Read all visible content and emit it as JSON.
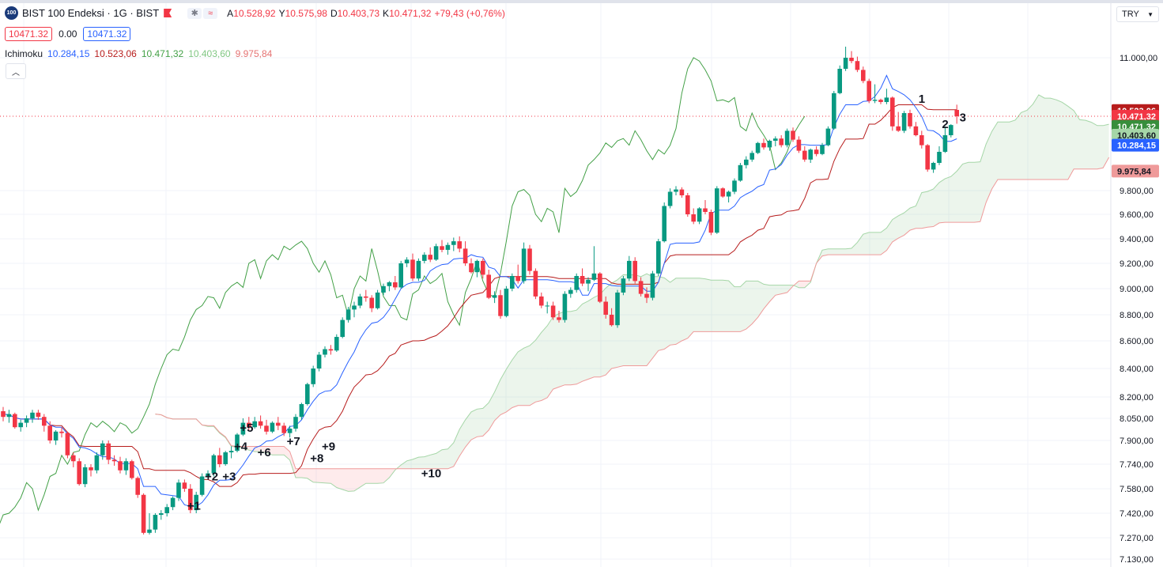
{
  "header": {
    "logo_text": "100",
    "symbol": "BIST 100 Endeksi · 1G · BIST",
    "ohlc": {
      "o_label": "A",
      "o_value": "10.528,92",
      "h_label": "Y",
      "h_value": "10.575,98",
      "l_label": "D",
      "l_value": "10.403,73",
      "c_label": "K",
      "c_value": "10.471,32",
      "change": "+79,43 (+0,76%)"
    },
    "bid": "10471.32",
    "spread": "0.00",
    "ask": "10471.32",
    "indicator_name": "Ichimoku",
    "indicator_values": [
      "10.284,15",
      "10.523,06",
      "10.471,32",
      "10.403,60",
      "9.975,84"
    ],
    "currency": "TRY",
    "collapse_icon": "chevron-up-icon"
  },
  "colors": {
    "up": "#089981",
    "down": "#f23645",
    "tenkan": "#2962ff",
    "kijun": "#b71c1c",
    "chikou": "#43a047",
    "spanA": "#a5d6a7",
    "spanB": "#ef9a9a",
    "cloud_up": "rgba(67,160,71,0.10)",
    "cloud_down": "rgba(242,54,69,0.10)"
  },
  "chart_data": {
    "type": "candlestick",
    "yticks": [
      "11.000,00",
      "9.800,00",
      "9.600,00",
      "9.400,00",
      "9.200,00",
      "9.000,00",
      "8.800,00",
      "8.600,00",
      "8.400,00",
      "8.200,00",
      "8.050,00",
      "7.900,00",
      "7.740,00",
      "7.580,00",
      "7.420,00",
      "7.270,00",
      "7.130,00"
    ],
    "price_tags": [
      {
        "text": "10.523,06",
        "y": 10523.06,
        "color": "#b71c1c"
      },
      {
        "text": "10.471,32",
        "y": 10471.32,
        "color": "#f23645"
      },
      {
        "text": "10.471,32",
        "y": 10380,
        "color": "#388e3c"
      },
      {
        "text": "10.403,60",
        "y": 10300,
        "color": "#a5d6a7"
      },
      {
        "text": "10.284,15",
        "y": 10210,
        "color": "#2962ff"
      },
      {
        "text": "9.975,84",
        "y": 9975.84,
        "color": "#ef9a9a"
      }
    ],
    "candles": [
      [
        8100,
        8130,
        8030,
        8060
      ],
      [
        8060,
        8110,
        8020,
        8080
      ],
      [
        8080,
        8090,
        7980,
        7990
      ],
      [
        7990,
        8040,
        7960,
        8020
      ],
      [
        8020,
        8070,
        7990,
        8050
      ],
      [
        8050,
        8110,
        8020,
        8090
      ],
      [
        8090,
        8110,
        8040,
        8060
      ],
      [
        8060,
        8080,
        7960,
        8000
      ],
      [
        8000,
        8030,
        7880,
        7900
      ],
      [
        7900,
        7970,
        7870,
        7960
      ],
      [
        7960,
        7990,
        7920,
        7950
      ],
      [
        7950,
        7960,
        7780,
        7800
      ],
      [
        7800,
        7820,
        7720,
        7760
      ],
      [
        7760,
        7780,
        7600,
        7610
      ],
      [
        7610,
        7740,
        7590,
        7720
      ],
      [
        7720,
        7740,
        7660,
        7700
      ],
      [
        7700,
        7820,
        7680,
        7800
      ],
      [
        7800,
        7900,
        7770,
        7880
      ],
      [
        7880,
        7900,
        7740,
        7770
      ],
      [
        7770,
        7800,
        7730,
        7760
      ],
      [
        7760,
        7790,
        7680,
        7700
      ],
      [
        7700,
        7780,
        7670,
        7760
      ],
      [
        7760,
        7770,
        7640,
        7650
      ],
      [
        7650,
        7660,
        7520,
        7540
      ],
      [
        7540,
        7550,
        7290,
        7300
      ],
      [
        7300,
        7420,
        7290,
        7320
      ],
      [
        7320,
        7420,
        7300,
        7410
      ],
      [
        7410,
        7440,
        7380,
        7420
      ],
      [
        7420,
        7480,
        7400,
        7460
      ],
      [
        7460,
        7530,
        7440,
        7520
      ],
      [
        7520,
        7640,
        7500,
        7620
      ],
      [
        7620,
        7640,
        7560,
        7580
      ],
      [
        7580,
        7610,
        7420,
        7440
      ],
      [
        7440,
        7560,
        7420,
        7540
      ],
      [
        7540,
        7680,
        7530,
        7660
      ],
      [
        7660,
        7700,
        7640,
        7680
      ],
      [
        7680,
        7810,
        7660,
        7800
      ],
      [
        7800,
        7850,
        7720,
        7740
      ],
      [
        7740,
        7830,
        7730,
        7820
      ],
      [
        7820,
        7860,
        7780,
        7830
      ],
      [
        7830,
        7950,
        7820,
        7940
      ],
      [
        7940,
        8050,
        7930,
        8020
      ],
      [
        8020,
        8060,
        7970,
        7990
      ],
      [
        7990,
        8060,
        7980,
        8030
      ],
      [
        8030,
        8070,
        7980,
        8000
      ],
      [
        8000,
        8040,
        7940,
        7960
      ],
      [
        7960,
        8030,
        7950,
        8020
      ],
      [
        8020,
        8060,
        7970,
        8000
      ],
      [
        8000,
        8020,
        7930,
        7950
      ],
      [
        7950,
        8000,
        7920,
        7980
      ],
      [
        7980,
        8080,
        7960,
        8060
      ],
      [
        8060,
        8160,
        8040,
        8150
      ],
      [
        8150,
        8300,
        8140,
        8290
      ],
      [
        8290,
        8420,
        8270,
        8400
      ],
      [
        8400,
        8520,
        8380,
        8500
      ],
      [
        8500,
        8560,
        8480,
        8540
      ],
      [
        8540,
        8570,
        8500,
        8530
      ],
      [
        8530,
        8650,
        8520,
        8630
      ],
      [
        8630,
        8780,
        8620,
        8760
      ],
      [
        8760,
        8860,
        8740,
        8840
      ],
      [
        8840,
        8900,
        8780,
        8870
      ],
      [
        8870,
        8960,
        8850,
        8940
      ],
      [
        8940,
        8990,
        8900,
        8930
      ],
      [
        8930,
        8950,
        8820,
        8850
      ],
      [
        8850,
        8990,
        8840,
        8970
      ],
      [
        8970,
        9040,
        8950,
        9020
      ],
      [
        9020,
        9060,
        8980,
        9050
      ],
      [
        9050,
        9100,
        8990,
        9010
      ],
      [
        9010,
        9220,
        9000,
        9200
      ],
      [
        9200,
        9250,
        9170,
        9230
      ],
      [
        9230,
        9280,
        9060,
        9080
      ],
      [
        9080,
        9240,
        9060,
        9220
      ],
      [
        9220,
        9290,
        9200,
        9270
      ],
      [
        9270,
        9330,
        9210,
        9230
      ],
      [
        9230,
        9360,
        9220,
        9340
      ],
      [
        9340,
        9390,
        9290,
        9310
      ],
      [
        9310,
        9370,
        9270,
        9350
      ],
      [
        9350,
        9410,
        9300,
        9380
      ],
      [
        9380,
        9420,
        9290,
        9320
      ],
      [
        9320,
        9380,
        9180,
        9200
      ],
      [
        9200,
        9240,
        9120,
        9130
      ],
      [
        9130,
        9230,
        9090,
        9220
      ],
      [
        9220,
        9240,
        9080,
        9110
      ],
      [
        9110,
        9150,
        8920,
        8930
      ],
      [
        8930,
        8980,
        8890,
        8950
      ],
      [
        8950,
        8990,
        8770,
        8790
      ],
      [
        8790,
        9020,
        8780,
        9000
      ],
      [
        9000,
        9120,
        8980,
        9100
      ],
      [
        9100,
        9190,
        9040,
        9060
      ],
      [
        9060,
        9370,
        9040,
        9320
      ],
      [
        9320,
        9350,
        9110,
        9140
      ],
      [
        9140,
        9160,
        8920,
        8940
      ],
      [
        8940,
        8970,
        8850,
        8870
      ],
      [
        8870,
        8900,
        8810,
        8870
      ],
      [
        8870,
        8900,
        8760,
        8780
      ],
      [
        8780,
        8830,
        8740,
        8760
      ],
      [
        8760,
        8980,
        8740,
        8960
      ],
      [
        8960,
        9010,
        8930,
        8990
      ],
      [
        8990,
        9120,
        8970,
        9100
      ],
      [
        9100,
        9160,
        9020,
        9040
      ],
      [
        9040,
        9090,
        8980,
        9070
      ],
      [
        9070,
        9340,
        9060,
        9120
      ],
      [
        9120,
        9130,
        8890,
        8900
      ],
      [
        8900,
        8940,
        8770,
        8800
      ],
      [
        8800,
        8850,
        8710,
        8720
      ],
      [
        8720,
        8990,
        8700,
        8970
      ],
      [
        8970,
        9100,
        8950,
        9080
      ],
      [
        9080,
        9260,
        9060,
        9220
      ],
      [
        9220,
        9250,
        9040,
        9060
      ],
      [
        9060,
        9090,
        8940,
        8960
      ],
      [
        8960,
        9010,
        8890,
        8930
      ],
      [
        8930,
        9140,
        8910,
        9120
      ],
      [
        9120,
        9400,
        9100,
        9380
      ],
      [
        9380,
        9700,
        9370,
        9670
      ],
      [
        9670,
        9820,
        9650,
        9790
      ],
      [
        9790,
        9840,
        9760,
        9810
      ],
      [
        9810,
        9830,
        9740,
        9760
      ],
      [
        9760,
        9780,
        9580,
        9600
      ],
      [
        9600,
        9650,
        9520,
        9540
      ],
      [
        9540,
        9660,
        9520,
        9650
      ],
      [
        9650,
        9720,
        9600,
        9620
      ],
      [
        9620,
        9640,
        9430,
        9450
      ],
      [
        9450,
        9840,
        9440,
        9820
      ],
      [
        9820,
        9830,
        9740,
        9750
      ],
      [
        9750,
        9800,
        9700,
        9790
      ],
      [
        9790,
        9910,
        9770,
        9890
      ],
      [
        9890,
        10050,
        9880,
        10030
      ],
      [
        10030,
        10110,
        10000,
        10080
      ],
      [
        10080,
        10160,
        10060,
        10140
      ],
      [
        10140,
        10240,
        10130,
        10230
      ],
      [
        10230,
        10270,
        10170,
        10190
      ],
      [
        10190,
        10260,
        10160,
        10250
      ],
      [
        10250,
        10290,
        10200,
        10270
      ],
      [
        10270,
        10300,
        10190,
        10210
      ],
      [
        10210,
        10360,
        10190,
        10340
      ],
      [
        10340,
        10370,
        10240,
        10260
      ],
      [
        10260,
        10290,
        10140,
        10160
      ],
      [
        10160,
        10200,
        10060,
        10080
      ],
      [
        10080,
        10180,
        10050,
        10170
      ],
      [
        10170,
        10200,
        10110,
        10130
      ],
      [
        10130,
        10230,
        10120,
        10210
      ],
      [
        10210,
        10380,
        10200,
        10360
      ],
      [
        10360,
        10700,
        10350,
        10680
      ],
      [
        10680,
        10930,
        10670,
        10900
      ],
      [
        10900,
        11100,
        10880,
        11000
      ],
      [
        11000,
        11060,
        10950,
        10970
      ],
      [
        10970,
        11010,
        10870,
        10890
      ],
      [
        10890,
        10920,
        10770,
        10790
      ],
      [
        10790,
        10810,
        10590,
        10610
      ],
      [
        10610,
        10760,
        10590,
        10620
      ],
      [
        10620,
        10630,
        10580,
        10600
      ],
      [
        10600,
        10720,
        10580,
        10640
      ],
      [
        10640,
        10650,
        10340,
        10380
      ],
      [
        10380,
        10510,
        10330,
        10340
      ],
      [
        10340,
        10520,
        10320,
        10500
      ],
      [
        10500,
        10530,
        10360,
        10380
      ],
      [
        10380,
        10420,
        10290,
        10300
      ],
      [
        10300,
        10340,
        10180,
        10210
      ],
      [
        10210,
        10220,
        9970,
        9990
      ],
      [
        9990,
        10060,
        9960,
        10050
      ],
      [
        10050,
        10200,
        10030,
        10150
      ],
      [
        10150,
        10380,
        10140,
        10300
      ],
      [
        10300,
        10400,
        10280,
        10392
      ],
      [
        10528.92,
        10575.98,
        10403.73,
        10471.32
      ]
    ],
    "labels": [
      {
        "text": "+1",
        "i": 32,
        "y": 7470
      },
      {
        "text": "+2",
        "i": 35,
        "y": 7660
      },
      {
        "text": "+3",
        "i": 38,
        "y": 7660
      },
      {
        "text": "+4",
        "i": 40,
        "y": 7860
      },
      {
        "text": "+5",
        "i": 41,
        "y": 7985
      },
      {
        "text": "+6",
        "i": 44,
        "y": 7820
      },
      {
        "text": "+7",
        "i": 49,
        "y": 7895
      },
      {
        "text": "+8",
        "i": 53,
        "y": 7780
      },
      {
        "text": "+9",
        "i": 55,
        "y": 7860
      },
      {
        "text": "+10",
        "i": 72,
        "y": 7680
      },
      {
        "text": "1",
        "i": 157,
        "y": 10630
      },
      {
        "text": "2",
        "i": 161,
        "y": 10400
      },
      {
        "text": "3",
        "i": 164,
        "y": 10460
      }
    ]
  }
}
